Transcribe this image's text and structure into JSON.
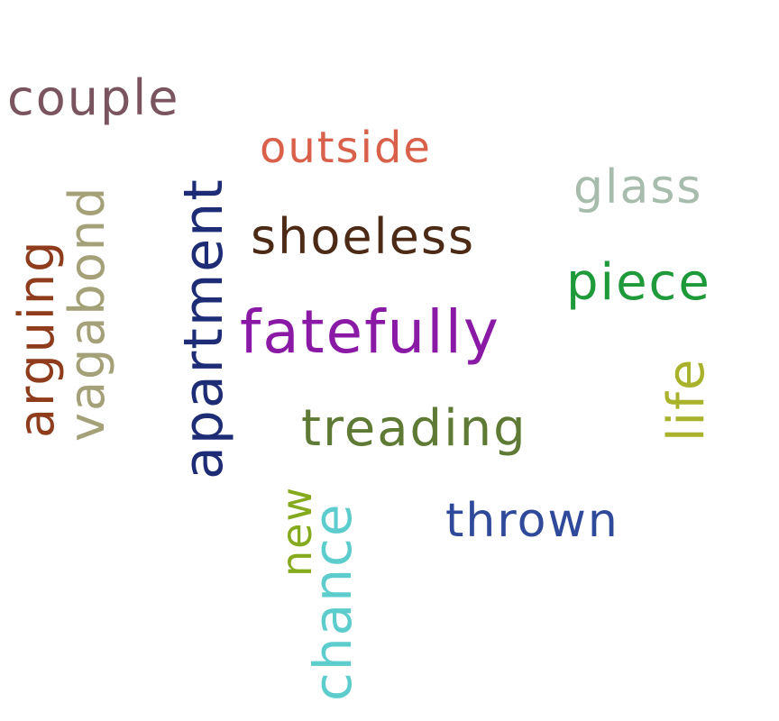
{
  "words": {
    "couple": {
      "text": "couple",
      "color": "#7a5560"
    },
    "outside": {
      "text": "outside",
      "color": "#d9604a"
    },
    "glass": {
      "text": "glass",
      "color": "#a8bcae"
    },
    "shoeless": {
      "text": "shoeless",
      "color": "#4d2a16"
    },
    "piece": {
      "text": "piece",
      "color": "#1f9a3a"
    },
    "fatefully": {
      "text": "fatefully",
      "color": "#8a19a6"
    },
    "treading": {
      "text": "treading",
      "color": "#5e7a34"
    },
    "thrown": {
      "text": "thrown",
      "color": "#2f4a9a"
    },
    "arguing": {
      "text": "arguing",
      "color": "#8e3c1c"
    },
    "vagabond": {
      "text": "vagabond",
      "color": "#a4a078"
    },
    "apartment": {
      "text": "apartment",
      "color": "#1e2c76"
    },
    "life": {
      "text": "life",
      "color": "#a8b22a"
    },
    "new": {
      "text": "new",
      "color": "#86aa1e"
    },
    "chance": {
      "text": "chance",
      "color": "#5ccccc"
    }
  }
}
